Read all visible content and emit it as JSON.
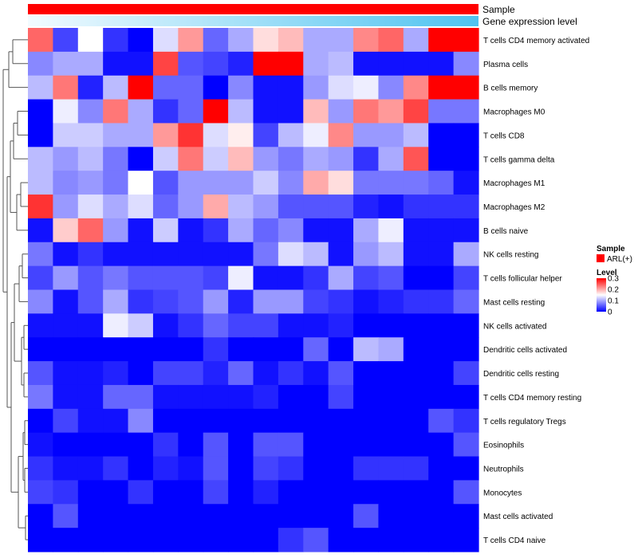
{
  "chart_data": {
    "type": "heatmap",
    "title": "",
    "annotation_tracks": [
      {
        "name": "Sample",
        "color": "#ff0000"
      },
      {
        "name": "Gene expression level",
        "gradient_from": "#f2fbff",
        "gradient_to": "#4fc3f0"
      }
    ],
    "rows": [
      "T cells CD4 memory activated",
      "Plasma cells",
      "B cells memory",
      "Macrophages M0",
      "T cells CD8",
      "T cells gamma delta",
      "Macrophages M1",
      "Macrophages M2",
      "B cells naive",
      "NK cells resting",
      "T cells follicular helper",
      "Mast cells resting",
      "NK cells activated",
      "Dendritic cells activated",
      "Dendritic cells resting",
      "T cells CD4 memory resting",
      "T cells regulatory  Tregs",
      "Eosinophils",
      "Neutrophils",
      "Monocytes",
      "Mast cells activated",
      "T cells CD4 naive"
    ],
    "n_columns": 18,
    "values": [
      [
        0.24,
        0.04,
        0.15,
        0.03,
        0.0,
        0.13,
        0.21,
        0.06,
        0.1,
        0.17,
        0.19,
        0.1,
        0.1,
        0.22,
        0.24,
        0.1,
        0.3,
        0.3
      ],
      [
        0.08,
        0.1,
        0.1,
        0.01,
        0.01,
        0.26,
        0.05,
        0.04,
        0.02,
        0.3,
        0.3,
        0.1,
        0.11,
        0.01,
        0.01,
        0.01,
        0.01,
        0.08
      ],
      [
        0.11,
        0.23,
        0.02,
        0.11,
        0.3,
        0.06,
        0.06,
        0.0,
        0.08,
        0.01,
        0.01,
        0.09,
        0.13,
        0.14,
        0.08,
        0.22,
        0.3,
        0.3
      ],
      [
        0.0,
        0.14,
        0.08,
        0.23,
        0.1,
        0.03,
        0.06,
        0.3,
        0.11,
        0.01,
        0.01,
        0.19,
        0.09,
        0.23,
        0.21,
        0.26,
        0.07,
        0.07
      ],
      [
        0.0,
        0.12,
        0.12,
        0.1,
        0.1,
        0.21,
        0.27,
        0.13,
        0.16,
        0.04,
        0.11,
        0.14,
        0.22,
        0.09,
        0.09,
        0.11,
        0.0,
        0.0
      ],
      [
        0.11,
        0.09,
        0.11,
        0.07,
        0.0,
        0.12,
        0.23,
        0.12,
        0.19,
        0.09,
        0.07,
        0.1,
        0.09,
        0.03,
        0.1,
        0.25,
        0.0,
        0.0
      ],
      [
        0.11,
        0.08,
        0.09,
        0.07,
        0.15,
        0.05,
        0.09,
        0.09,
        0.09,
        0.12,
        0.08,
        0.2,
        0.17,
        0.07,
        0.07,
        0.07,
        0.06,
        0.01
      ],
      [
        0.27,
        0.09,
        0.13,
        0.1,
        0.13,
        0.06,
        0.09,
        0.2,
        0.11,
        0.09,
        0.05,
        0.05,
        0.05,
        0.02,
        0.01,
        0.03,
        0.03,
        0.03
      ],
      [
        0.01,
        0.18,
        0.24,
        0.09,
        0.01,
        0.12,
        0.01,
        0.03,
        0.1,
        0.06,
        0.08,
        0.01,
        0.01,
        0.1,
        0.14,
        0.01,
        0.01,
        0.01
      ],
      [
        0.07,
        0.01,
        0.03,
        0.01,
        0.01,
        0.01,
        0.01,
        0.01,
        0.01,
        0.07,
        0.13,
        0.11,
        0.01,
        0.09,
        0.11,
        0.01,
        0.01,
        0.1
      ],
      [
        0.04,
        0.09,
        0.05,
        0.07,
        0.05,
        0.05,
        0.05,
        0.04,
        0.14,
        0.01,
        0.01,
        0.03,
        0.1,
        0.04,
        0.05,
        0.0,
        0.0,
        0.04
      ],
      [
        0.08,
        0.01,
        0.05,
        0.1,
        0.03,
        0.04,
        0.05,
        0.09,
        0.02,
        0.09,
        0.09,
        0.04,
        0.03,
        0.01,
        0.02,
        0.03,
        0.03,
        0.06
      ],
      [
        0.01,
        0.01,
        0.01,
        0.14,
        0.12,
        0.01,
        0.03,
        0.06,
        0.04,
        0.04,
        0.01,
        0.01,
        0.02,
        0.0,
        0.0,
        0.0,
        0.0,
        0.0
      ],
      [
        0.0,
        0.0,
        0.0,
        0.0,
        0.0,
        0.0,
        0.0,
        0.03,
        0.0,
        0.0,
        0.0,
        0.06,
        0.0,
        0.11,
        0.1,
        0.0,
        0.0,
        0.0
      ],
      [
        0.05,
        0.01,
        0.01,
        0.02,
        0.0,
        0.04,
        0.04,
        0.02,
        0.06,
        0.01,
        0.03,
        0.01,
        0.05,
        0.0,
        0.0,
        0.0,
        0.0,
        0.04
      ],
      [
        0.07,
        0.01,
        0.01,
        0.06,
        0.06,
        0.01,
        0.01,
        0.01,
        0.01,
        0.02,
        0.0,
        0.0,
        0.04,
        0.0,
        0.0,
        0.0,
        0.0,
        0.0
      ],
      [
        0.0,
        0.04,
        0.01,
        0.01,
        0.08,
        0.0,
        0.0,
        0.0,
        0.0,
        0.0,
        0.0,
        0.0,
        0.0,
        0.0,
        0.0,
        0.0,
        0.05,
        0.03
      ],
      [
        0.01,
        0.0,
        0.0,
        0.0,
        0.0,
        0.03,
        0.0,
        0.05,
        0.0,
        0.05,
        0.05,
        0.0,
        0.0,
        0.0,
        0.0,
        0.0,
        0.0,
        0.05
      ],
      [
        0.03,
        0.01,
        0.01,
        0.03,
        0.0,
        0.02,
        0.01,
        0.05,
        0.0,
        0.04,
        0.03,
        0.0,
        0.0,
        0.03,
        0.03,
        0.03,
        0.0,
        0.0
      ],
      [
        0.04,
        0.03,
        0.0,
        0.0,
        0.03,
        0.0,
        0.0,
        0.04,
        0.0,
        0.02,
        0.0,
        0.0,
        0.0,
        0.0,
        0.0,
        0.0,
        0.0,
        0.05
      ],
      [
        0.0,
        0.05,
        0.0,
        0.0,
        0.0,
        0.0,
        0.0,
        0.0,
        0.0,
        0.0,
        0.0,
        0.0,
        0.0,
        0.05,
        0.0,
        0.0,
        0.0,
        0.0
      ],
      [
        0.0,
        0.0,
        0.0,
        0.0,
        0.0,
        0.0,
        0.0,
        0.0,
        0.0,
        0.0,
        0.03,
        0.05,
        0.0,
        0.0,
        0.0,
        0.0,
        0.0,
        0.0
      ]
    ],
    "color_scale": {
      "min": 0,
      "mid": 0.15,
      "max": 0.3,
      "low": "#0000ff",
      "mid_color": "#ffffff",
      "high": "#ff0000"
    },
    "legend": {
      "position": "right",
      "sample_title": "Sample",
      "sample_entry": "ARL(+)",
      "sample_color": "#ff0000",
      "level_title": "Level",
      "level_ticks": [
        {
          "label": "0.3",
          "value": 0.3
        },
        {
          "label": "0.2",
          "value": 0.2
        },
        {
          "label": "0.1",
          "value": 0.1
        },
        {
          "label": "0",
          "value": 0
        }
      ]
    },
    "row_dendrogram": true
  }
}
